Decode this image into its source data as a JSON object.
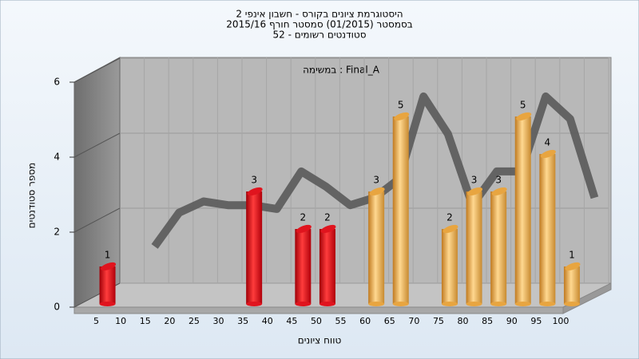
{
  "chart_data": {
    "type": "bar",
    "title": [
      "היסטוגרמת ציונים בקורס - חשבון אינפי 2",
      "בסמסטר  (01/2015)  סמסטר חורף 2015/16",
      "סטודנטים רשומים - 52"
    ],
    "annotation": "במשימה : Final_A",
    "x_label": "טווח ציונים",
    "y_label": "מספר סטודנטים",
    "categories": [
      5,
      10,
      15,
      20,
      25,
      30,
      35,
      40,
      45,
      50,
      55,
      60,
      65,
      70,
      75,
      80,
      85,
      90,
      95,
      100
    ],
    "series": [
      {
        "values": [
          1,
          0,
          0,
          0,
          0,
          0,
          3,
          0,
          2,
          2,
          0,
          3,
          5,
          0,
          2,
          3,
          3,
          5,
          4,
          1
        ],
        "colors": [
          "#e0141e",
          "#e0141e",
          "#e0141e",
          "#e0141e",
          "#e0141e",
          "#e0141e",
          "#e0141e",
          "#e0141e",
          "#e0141e",
          "#e0141e",
          "#e0141e",
          "#e8a540",
          "#e8a540",
          "#e8a540",
          "#e8a540",
          "#e8a540",
          "#e8a540",
          "#e8a540",
          "#e8a540",
          "#e8a540"
        ]
      },
      {
        "type": "line",
        "color": "#5a5a5a",
        "values": [
          null,
          1.3,
          2.2,
          2.5,
          2.4,
          2.4,
          2.3,
          3.3,
          2.9,
          2.4,
          2.6,
          3.1,
          5.3,
          4.3,
          2.4,
          3.3,
          3.3,
          5.3,
          4.7,
          2.6
        ]
      }
    ],
    "ylim": [
      0,
      6
    ],
    "yticks": [
      0,
      2,
      4,
      6
    ],
    "grid": true
  }
}
